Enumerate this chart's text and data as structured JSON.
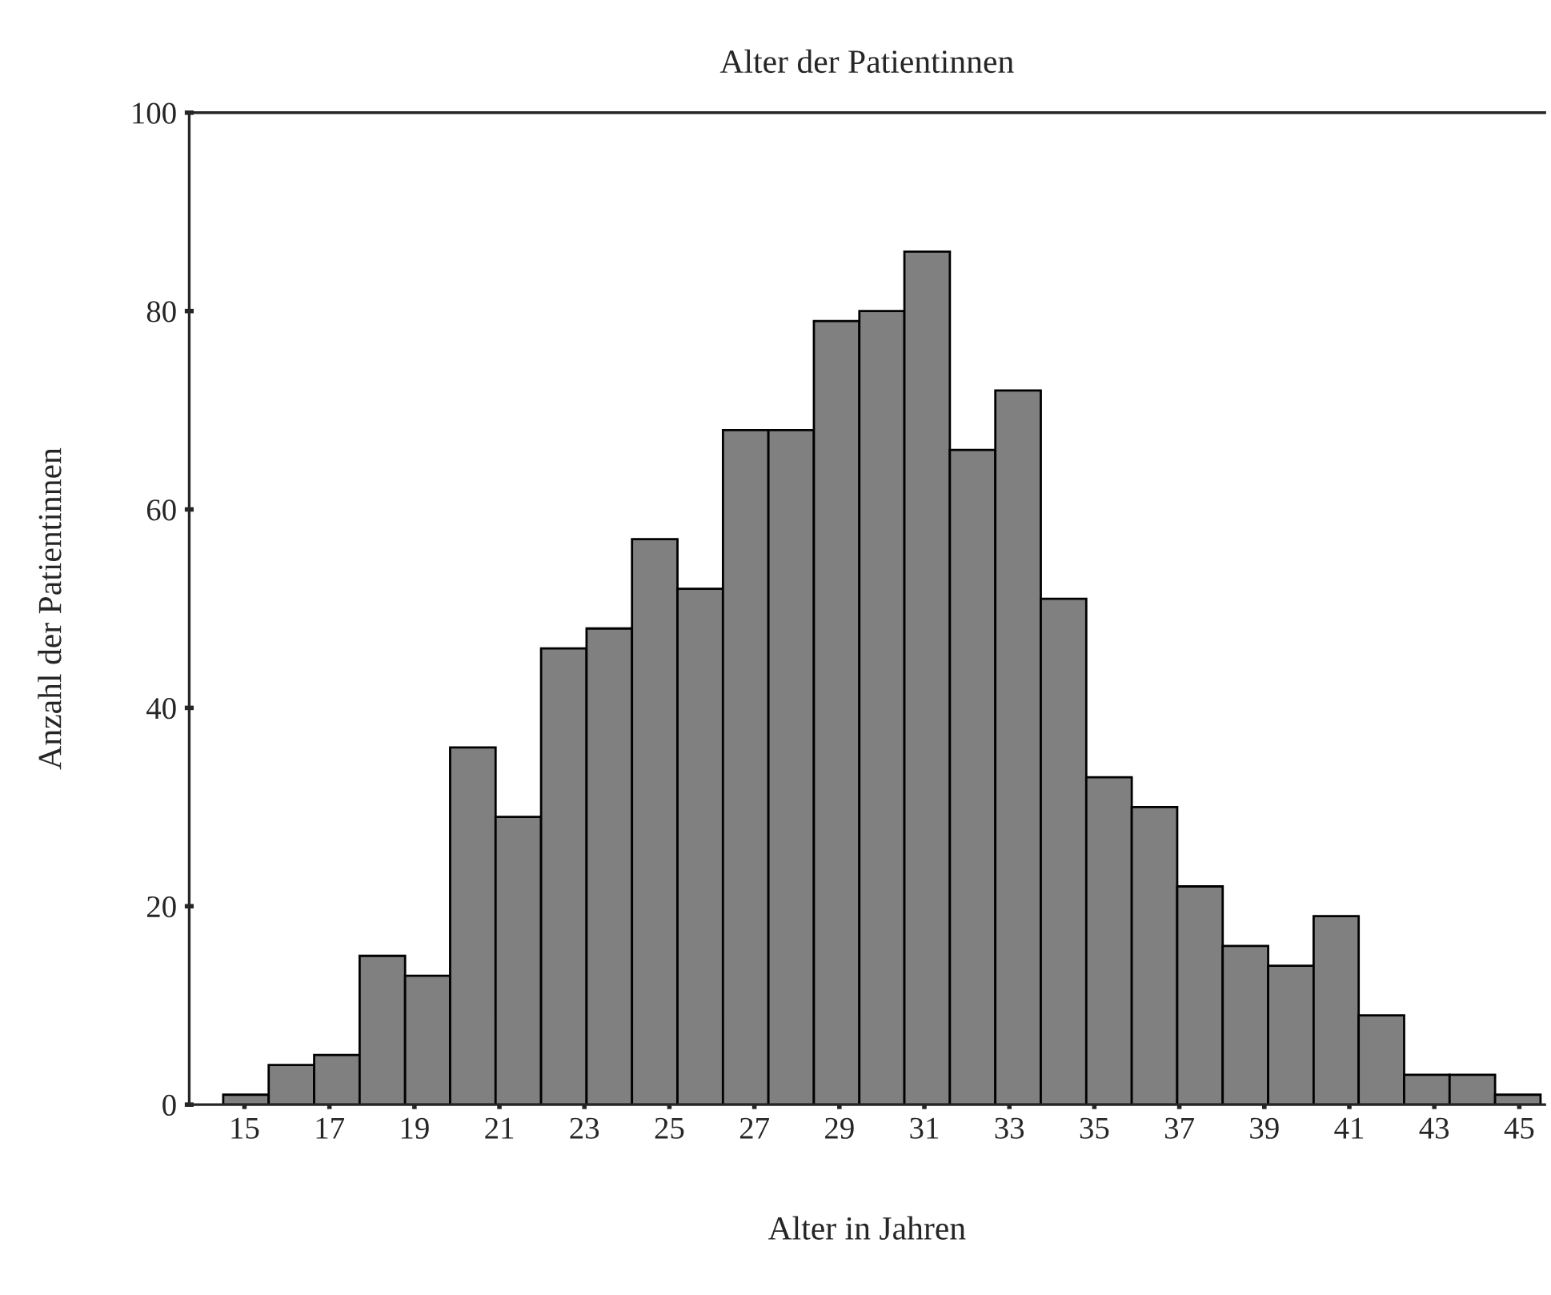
{
  "chart_data": {
    "type": "histogram",
    "title": "Alter der Patientinnen",
    "xlabel": "Alter in Jahren",
    "ylabel": "Anzahl der Patientinnen",
    "bins": [
      14.5,
      15.57,
      16.64,
      17.71,
      18.78,
      19.84,
      20.91,
      21.98,
      23.05,
      24.12,
      25.19,
      26.26,
      27.33,
      28.4,
      29.47,
      30.53,
      31.6,
      32.67,
      33.74,
      34.81,
      35.88,
      36.95,
      38.02,
      39.09,
      40.16,
      41.22,
      42.29,
      43.36,
      44.43,
      45.5
    ],
    "values": [
      1,
      4,
      5,
      15,
      13,
      36,
      29,
      46,
      48,
      57,
      52,
      68,
      68,
      79,
      80,
      86,
      66,
      72,
      51,
      33,
      30,
      22,
      16,
      14,
      19,
      9,
      3,
      3,
      1
    ],
    "color": "#808080",
    "xlim": [
      13.7,
      45.6
    ],
    "xticks": [
      15,
      17,
      19,
      21,
      23,
      25,
      27,
      29,
      31,
      33,
      35,
      37,
      39,
      41,
      43,
      45
    ],
    "ylim": [
      0,
      100
    ],
    "yticks": [
      0,
      20,
      40,
      60,
      80,
      100
    ],
    "grid": false
  }
}
